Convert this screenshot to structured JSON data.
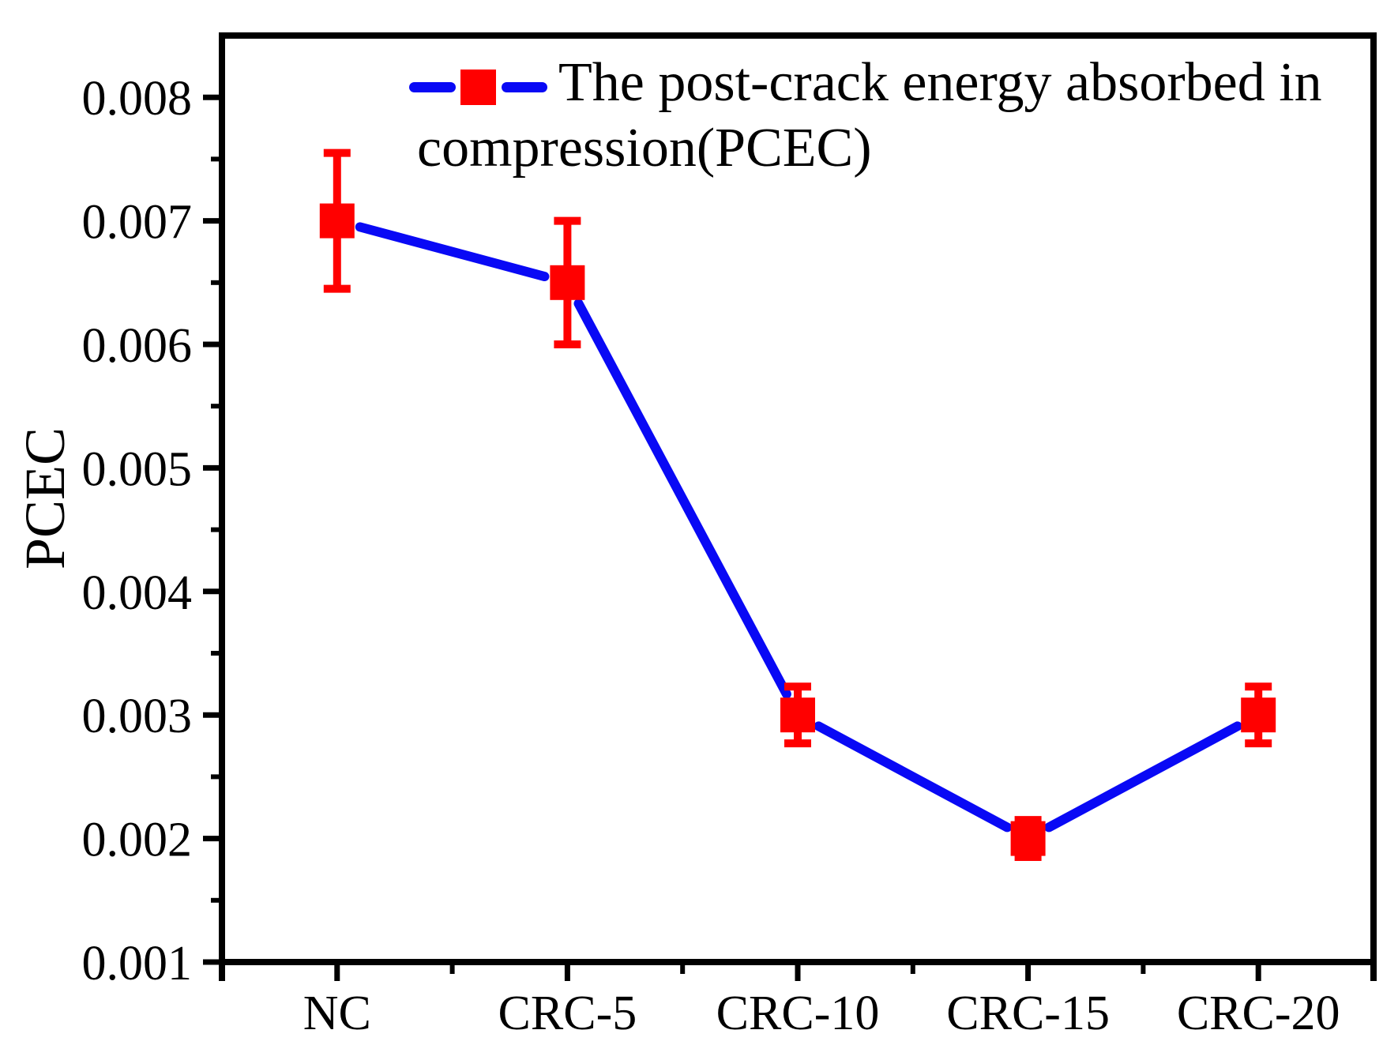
{
  "figure": {
    "background": "#ffffff",
    "text_color": "#000000",
    "axis_color": "#000000",
    "legend": {
      "line1": "The post-crack energy absorbed in",
      "line2": "compression(PCEC)",
      "marker_color": "#ff0000",
      "line_color": "#0909f5"
    }
  },
  "chart_data": {
    "type": "line",
    "title": "",
    "xlabel": "",
    "ylabel": "PCEC",
    "categories": [
      "NC",
      "CRC-5",
      "CRC-10",
      "CRC-15",
      "CRC-20"
    ],
    "series": [
      {
        "name": "The post-crack energy absorbed in compression(PCEC)",
        "values": [
          0.007,
          0.0065,
          0.003,
          0.002,
          0.003
        ],
        "errors": [
          0.00055,
          0.0005,
          0.00023,
          0.00015,
          0.00023
        ],
        "line_color": "#0909f5",
        "marker_color": "#ff0000",
        "marker": "square"
      }
    ],
    "ylim": [
      0.001,
      0.0085
    ],
    "yticks": [
      0.001,
      0.002,
      0.003,
      0.004,
      0.005,
      0.006,
      0.007,
      0.008
    ],
    "ytick_labels": [
      "0.001",
      "0.002",
      "0.003",
      "0.004",
      "0.005",
      "0.006",
      "0.007",
      "0.008"
    ],
    "minor_ytick_interval": 0.0005,
    "grid": false,
    "legend_position": "top-inside",
    "error_bars": true
  }
}
